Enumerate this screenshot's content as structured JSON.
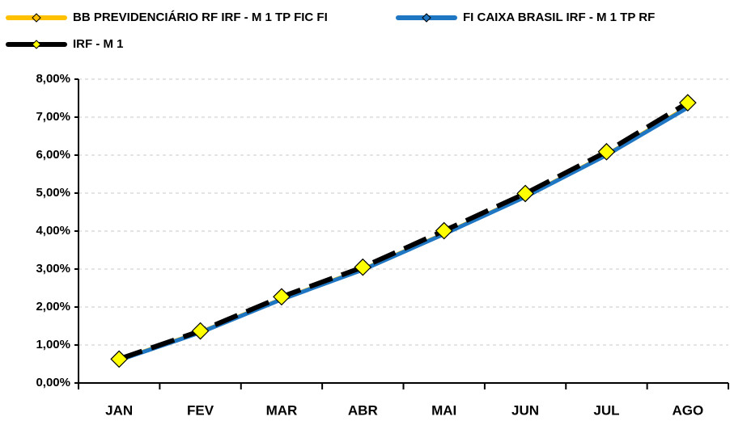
{
  "chart_data": {
    "type": "line",
    "categories": [
      "JAN",
      "FEV",
      "MAR",
      "ABR",
      "MAI",
      "JUN",
      "JUL",
      "AGO"
    ],
    "series": [
      {
        "name": "BB PREVIDENCIÁRIO RF IRF - M 1 TP FIC FI",
        "color": "#ffc000",
        "values": [
          0.61,
          1.34,
          2.21,
          2.99,
          3.93,
          4.91,
          6.01,
          7.27
        ]
      },
      {
        "name": "FI CAIXA BRASIL IRF - M 1 TP RF",
        "color": "#1f77c4",
        "values": [
          0.6,
          1.33,
          2.2,
          2.98,
          3.92,
          4.9,
          6.0,
          7.25
        ]
      },
      {
        "name": "IRF - M 1",
        "color": "#000000",
        "dashed": true,
        "marker": "diamond",
        "marker_color": "#ffff00",
        "values": [
          0.63,
          1.37,
          2.27,
          3.05,
          4.01,
          4.99,
          6.09,
          7.38
        ]
      }
    ],
    "ylim": [
      0,
      8
    ],
    "yticks": [
      {
        "value": 0,
        "label": "0,00%"
      },
      {
        "value": 1,
        "label": "1,00%"
      },
      {
        "value": 2,
        "label": "2,00%"
      },
      {
        "value": 3,
        "label": "3,00%"
      },
      {
        "value": 4,
        "label": "4,00%"
      },
      {
        "value": 5,
        "label": "5,00%"
      },
      {
        "value": 6,
        "label": "6,00%"
      },
      {
        "value": 7,
        "label": "7,00%"
      },
      {
        "value": 8,
        "label": "8,00%"
      }
    ],
    "grid": true
  }
}
